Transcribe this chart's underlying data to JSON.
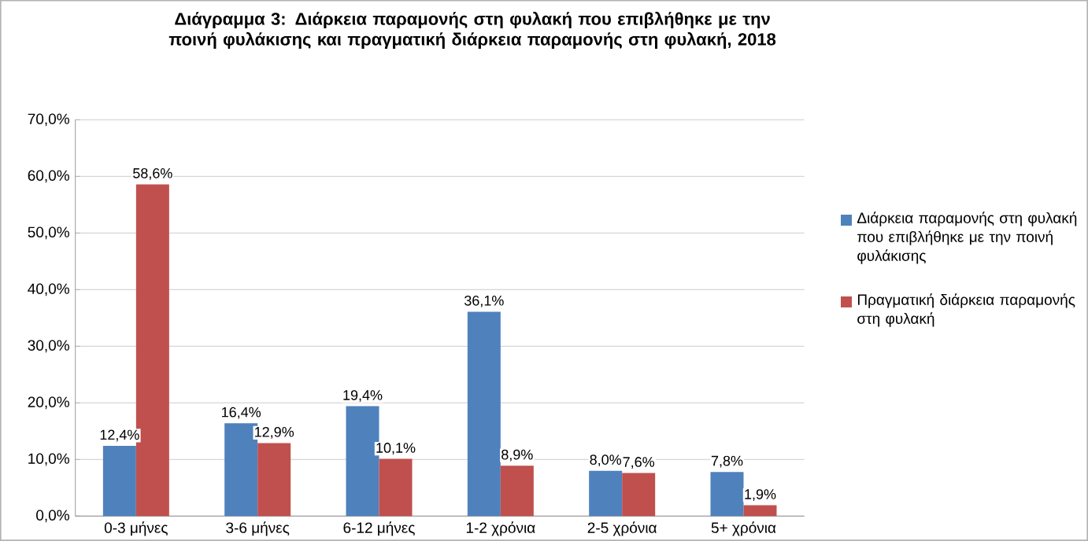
{
  "chart_data": {
    "type": "bar",
    "title": "Διάγραμμα 3: Διάρκεια παραμονής στη φυλακή που επιβλήθηκε με την ποινή φυλάκισης και πραγματική διάρκεια παραμονής στη φυλακή, 2018",
    "categories": [
      "0-3 μήνες",
      "3-6 μήνες",
      "6-12 μήνες",
      "1-2 χρόνια",
      "2-5 χρόνια",
      "5+ χρόνια"
    ],
    "series": [
      {
        "name": "Διάρκεια παραμονής στη φυλακή που επιβλήθηκε με την ποινή φυλάκισης",
        "color": "#4f81bd",
        "values": [
          12.4,
          16.4,
          19.4,
          36.1,
          8.0,
          7.8
        ],
        "value_labels": [
          "12,4%",
          "16,4%",
          "19,4%",
          "36,1%",
          "8,0%",
          "7,8%"
        ]
      },
      {
        "name": "Πραγματική διάρκεια παραμονής στη φυλακή",
        "color": "#c0504d",
        "values": [
          58.6,
          12.9,
          10.1,
          8.9,
          7.6,
          1.9
        ],
        "value_labels": [
          "58,6%",
          "12,9%",
          "10,1%",
          "8,9%",
          "7,6%",
          "1,9%"
        ]
      }
    ],
    "ylim": [
      0,
      70
    ],
    "yticks": [
      {
        "value": 0,
        "label": "0,0%"
      },
      {
        "value": 10,
        "label": "10,0%"
      },
      {
        "value": 20,
        "label": "20,0%"
      },
      {
        "value": 30,
        "label": "30,0%"
      },
      {
        "value": 40,
        "label": "40,0%"
      },
      {
        "value": 50,
        "label": "50,0%"
      },
      {
        "value": 60,
        "label": "60,0%"
      },
      {
        "value": 70,
        "label": "70,0%"
      }
    ],
    "grid": "y",
    "legend": "right"
  }
}
